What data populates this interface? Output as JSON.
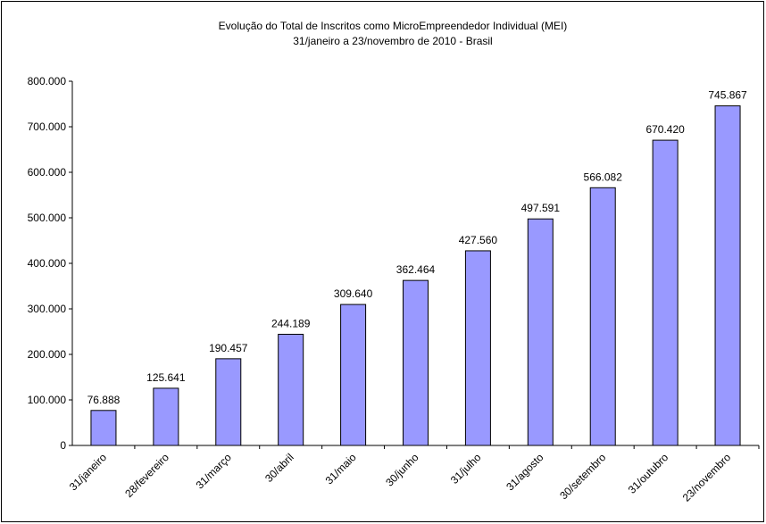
{
  "chart_data": {
    "type": "bar",
    "title": "Evolução do Total de Inscritos como MicroEmpreendedor Individual (MEI)",
    "subtitle": "31/janeiro a 23/novembro de 2010 - Brasil",
    "categories": [
      "31/janeiro",
      "28/fevereiro",
      "31/março",
      "30/abril",
      "31/maio",
      "30/junho",
      "31/julho",
      "31/agosto",
      "30/setembro",
      "31/outubro",
      "23/novembro"
    ],
    "values": [
      76888,
      125641,
      190457,
      244189,
      309640,
      362464,
      427560,
      497591,
      566082,
      670420,
      745867
    ],
    "value_labels": [
      "76.888",
      "125.641",
      "190.457",
      "244.189",
      "309.640",
      "362.464",
      "427.560",
      "497.591",
      "566.082",
      "670.420",
      "745.867"
    ],
    "color": "#9999ff",
    "ylim": [
      0,
      800000
    ],
    "yticks": [
      0,
      {
        "value": 100000,
        "label": "100.000"
      },
      {
        "value": 200000,
        "label": "200.000"
      },
      {
        "value": 300000,
        "label": "300.000"
      },
      {
        "value": 400000,
        "label": "400.000"
      },
      {
        "value": 500000,
        "label": "500.000"
      },
      {
        "value": 600000,
        "label": "600.000"
      },
      {
        "value": 700000,
        "label": "700.000"
      },
      {
        "value": 800000,
        "label": "800.000"
      }
    ],
    "grid": false
  }
}
